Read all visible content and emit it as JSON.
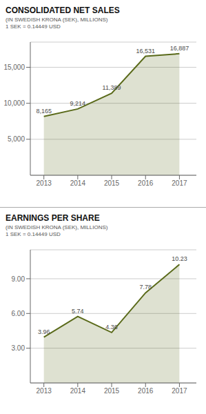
{
  "chart_data": [
    {
      "type": "area",
      "title": "CONSOLIDATED NET SALES",
      "subtitle": "(IN SWEDISH KRONA (SEK), MILLIONS)",
      "annotations": [
        "1 SEK = 0.14449 USD"
      ],
      "x": [
        2013,
        2014,
        2015,
        2016,
        2017
      ],
      "values": [
        8165,
        9214,
        11389,
        16531,
        16887
      ],
      "value_labels": [
        "8,165",
        "9,214",
        "11,389",
        "16,531",
        "16,887"
      ],
      "data_labels": true,
      "color": "#5a6a1a",
      "xlim": [
        2012.6,
        2017.5
      ],
      "xticks": [
        2013,
        2014,
        2015,
        2016,
        2017
      ],
      "ylim": [
        0,
        18500
      ],
      "yticks": [
        {
          "value": 5000,
          "label": "5,000"
        },
        {
          "value": 10000,
          "label": "10,000"
        },
        {
          "value": 15000,
          "label": "15,000"
        }
      ],
      "grid": true
    },
    {
      "type": "area",
      "title": "EARNINGS PER SHARE",
      "subtitle": "(IN SWEDISH KRONA (SEK), MILLIONS)",
      "annotations": [
        "1 SEK = 0.14449 USD"
      ],
      "x": [
        2013,
        2014,
        2015,
        2016,
        2017
      ],
      "values": [
        3.96,
        5.74,
        4.36,
        7.78,
        10.23
      ],
      "data_labels": true,
      "color": "#5a6a1a",
      "xlim": [
        2012.6,
        2017.5
      ],
      "xticks": [
        2013,
        2014,
        2015,
        2016,
        2017
      ],
      "ylim": [
        0,
        11.5
      ],
      "yticks": [
        {
          "value": 3,
          "label": "3.00"
        },
        {
          "value": 6,
          "label": "6.00"
        },
        {
          "value": 9,
          "label": "9.00"
        }
      ],
      "grid": true
    }
  ]
}
